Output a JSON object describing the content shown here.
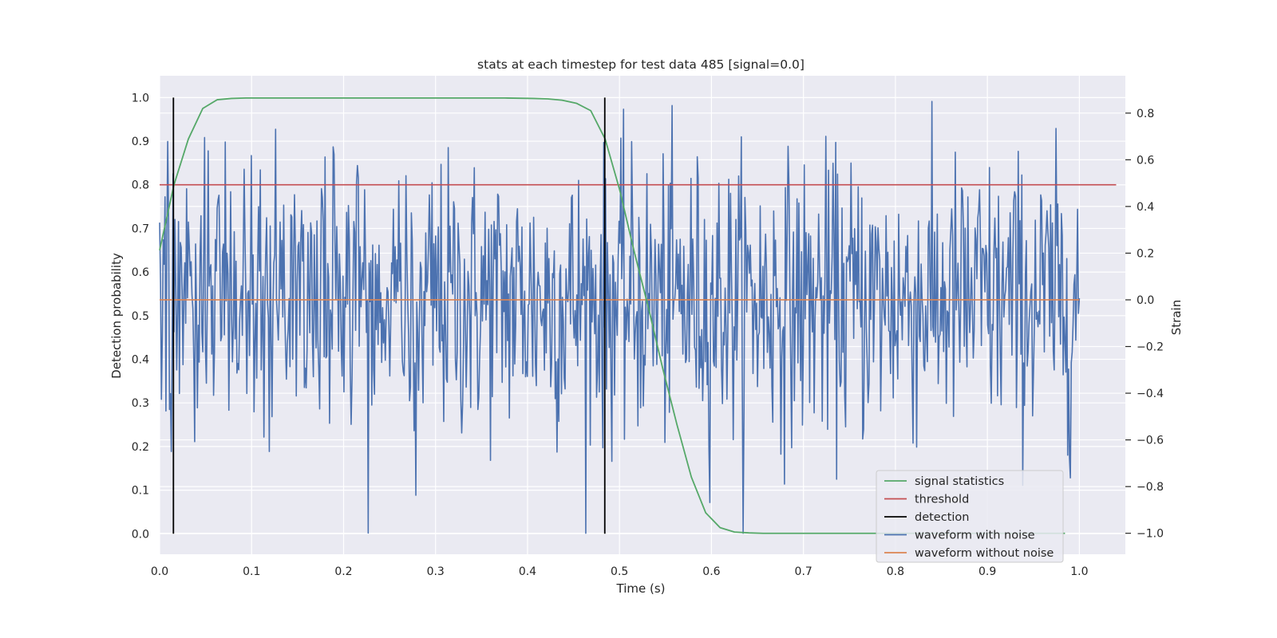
{
  "chart_data": {
    "type": "line",
    "title": "stats at each timestep for test data 485 [signal=0.0]",
    "xlabel": "Time (s)",
    "ylabel": "Detection probability",
    "y2label": "Strain",
    "xlim": [
      0.0,
      1.05
    ],
    "ylim": [
      -0.047,
      1.05
    ],
    "y2lim": [
      -1.09,
      0.96
    ],
    "xticks": [
      "0.0",
      "0.1",
      "0.2",
      "0.3",
      "0.4",
      "0.5",
      "0.6",
      "0.7",
      "0.8",
      "0.9",
      "1.0"
    ],
    "yticks": [
      "0.0",
      "0.1",
      "0.2",
      "0.3",
      "0.4",
      "0.5",
      "0.6",
      "0.7",
      "0.8",
      "0.9",
      "1.0"
    ],
    "y2ticks": [
      "−1.0",
      "−0.8",
      "−0.6",
      "−0.4",
      "−0.2",
      "0.0",
      "0.2",
      "0.4",
      "0.6",
      "0.8"
    ],
    "grid": true,
    "legend_position": "lower right",
    "colors": {
      "background": "#eaeaf2",
      "grid": "#ffffff",
      "signal_statistics": "#55a868",
      "threshold": "#c44e52",
      "detection": "#000000",
      "waveform_with_noise": "#4c72b0",
      "waveform_without_noise": "#dd8452"
    },
    "series": [
      {
        "name": "signal statistics",
        "axis": "left",
        "x": [
          0.0,
          0.0156,
          0.03125,
          0.0469,
          0.0625,
          0.0781,
          0.09375,
          0.125,
          0.25,
          0.375,
          0.40625,
          0.421875,
          0.4375,
          0.453125,
          0.46875,
          0.484375,
          0.5,
          0.515625,
          0.53125,
          0.546875,
          0.5625,
          0.578125,
          0.59375,
          0.609375,
          0.625,
          0.640625,
          0.65625,
          0.6875,
          0.75,
          0.875,
          0.984375
        ],
        "y": [
          0.65,
          0.8,
          0.905,
          0.975,
          0.995,
          0.998,
          0.999,
          0.999,
          0.999,
          0.999,
          0.998,
          0.997,
          0.994,
          0.987,
          0.97,
          0.905,
          0.79,
          0.65,
          0.52,
          0.38,
          0.25,
          0.13,
          0.048,
          0.014,
          0.004,
          0.002,
          0.001,
          0.001,
          0.001,
          0.001,
          0.001
        ]
      },
      {
        "name": "threshold",
        "axis": "left",
        "x": [
          0.0,
          1.04
        ],
        "y": [
          0.8,
          0.8
        ]
      },
      {
        "name": "detection",
        "axis": "left",
        "vlines_x": [
          0.015,
          0.484
        ],
        "ymin": 0.0,
        "ymax": 1.0
      },
      {
        "name": "waveform with noise",
        "axis": "right",
        "x_start": 0.0,
        "x_end": 1.0,
        "samples": 1024,
        "approx_range": [
          -1.0,
          0.85
        ],
        "noise_std": 0.3
      },
      {
        "name": "waveform without noise",
        "axis": "right",
        "x": [
          0.0,
          1.0
        ],
        "y": [
          0.0,
          0.0
        ]
      }
    ]
  }
}
